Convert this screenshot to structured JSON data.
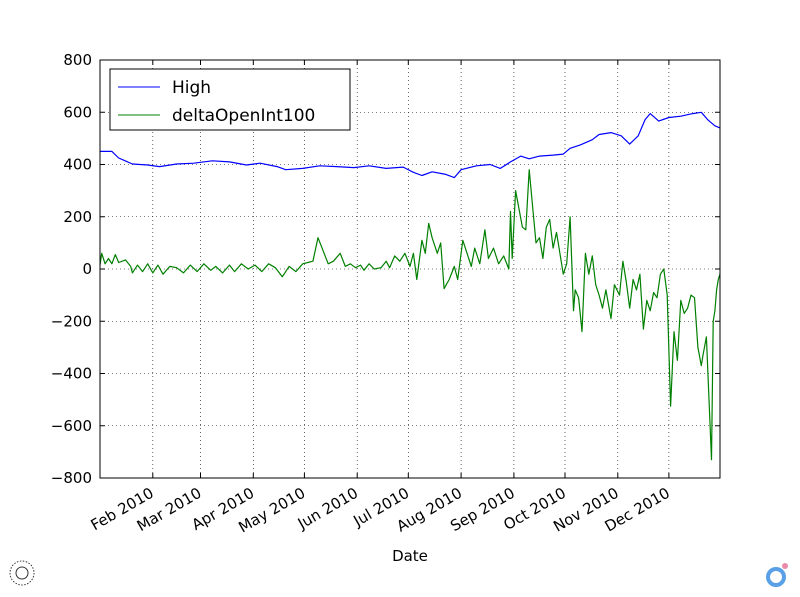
{
  "chart_data": {
    "type": "line",
    "title": "",
    "xlabel": "Date",
    "ylabel": "",
    "ylim": [
      -800,
      800
    ],
    "xlim": [
      "2010-01-01",
      "2010-12-31"
    ],
    "grid": true,
    "legend_position": "top-left",
    "y_ticks": [
      -800,
      -600,
      -400,
      -200,
      0,
      200,
      400,
      600,
      800
    ],
    "y_tick_labels": [
      "−800",
      "−600",
      "−400",
      "−200",
      "0",
      "200",
      "400",
      "600",
      "800"
    ],
    "x_ticks": [
      "2010-02-01",
      "2010-03-01",
      "2010-04-01",
      "2010-05-01",
      "2010-06-01",
      "2010-07-01",
      "2010-08-01",
      "2010-09-01",
      "2010-10-01",
      "2010-11-01",
      "2010-12-01"
    ],
    "x_tick_labels": [
      "Feb 2010",
      "Mar 2010",
      "Apr 2010",
      "May 2010",
      "Jun 2010",
      "Jul 2010",
      "Aug 2010",
      "Sep 2010",
      "Oct 2010",
      "Nov 2010",
      "Dec 2010"
    ],
    "series": [
      {
        "name": "High",
        "color": "#0000ff",
        "points": [
          [
            "2010-01-01",
            450
          ],
          [
            "2010-01-08",
            450
          ],
          [
            "2010-01-12",
            425
          ],
          [
            "2010-01-20",
            402
          ],
          [
            "2010-01-29",
            398
          ],
          [
            "2010-02-05",
            392
          ],
          [
            "2010-02-15",
            402
          ],
          [
            "2010-02-25",
            405
          ],
          [
            "2010-03-08",
            414
          ],
          [
            "2010-03-18",
            410
          ],
          [
            "2010-03-28",
            398
          ],
          [
            "2010-04-05",
            405
          ],
          [
            "2010-04-15",
            392
          ],
          [
            "2010-04-20",
            380
          ],
          [
            "2010-04-30",
            385
          ],
          [
            "2010-05-10",
            395
          ],
          [
            "2010-05-20",
            392
          ],
          [
            "2010-05-30",
            388
          ],
          [
            "2010-06-08",
            395
          ],
          [
            "2010-06-18",
            385
          ],
          [
            "2010-06-28",
            390
          ],
          [
            "2010-07-04",
            370
          ],
          [
            "2010-07-09",
            358
          ],
          [
            "2010-07-15",
            372
          ],
          [
            "2010-07-23",
            362
          ],
          [
            "2010-07-28",
            350
          ],
          [
            "2010-08-01",
            380
          ],
          [
            "2010-08-10",
            395
          ],
          [
            "2010-08-18",
            400
          ],
          [
            "2010-08-24",
            385
          ],
          [
            "2010-08-30",
            410
          ],
          [
            "2010-09-05",
            432
          ],
          [
            "2010-09-10",
            422
          ],
          [
            "2010-09-16",
            432
          ],
          [
            "2010-09-24",
            436
          ],
          [
            "2010-09-30",
            440
          ],
          [
            "2010-10-04",
            462
          ],
          [
            "2010-10-10",
            475
          ],
          [
            "2010-10-17",
            495
          ],
          [
            "2010-10-21",
            515
          ],
          [
            "2010-10-28",
            522
          ],
          [
            "2010-11-03",
            510
          ],
          [
            "2010-11-08",
            478
          ],
          [
            "2010-11-13",
            510
          ],
          [
            "2010-11-17",
            572
          ],
          [
            "2010-11-20",
            595
          ],
          [
            "2010-11-25",
            566
          ],
          [
            "2010-12-01",
            580
          ],
          [
            "2010-12-08",
            585
          ],
          [
            "2010-12-15",
            595
          ],
          [
            "2010-12-20",
            600
          ],
          [
            "2010-12-24",
            570
          ],
          [
            "2010-12-28",
            548
          ],
          [
            "2010-12-31",
            540
          ]
        ]
      },
      {
        "name": "deltaOpenInt100",
        "color": "#008000",
        "points": [
          [
            "2010-01-01",
            15
          ],
          [
            "2010-01-02",
            60
          ],
          [
            "2010-01-04",
            20
          ],
          [
            "2010-01-06",
            40
          ],
          [
            "2010-01-08",
            20
          ],
          [
            "2010-01-10",
            55
          ],
          [
            "2010-01-12",
            25
          ],
          [
            "2010-01-16",
            35
          ],
          [
            "2010-01-19",
            10
          ],
          [
            "2010-01-20",
            -15
          ],
          [
            "2010-01-23",
            15
          ],
          [
            "2010-01-26",
            -10
          ],
          [
            "2010-01-29",
            20
          ],
          [
            "2010-02-01",
            -15
          ],
          [
            "2010-02-04",
            15
          ],
          [
            "2010-02-07",
            -20
          ],
          [
            "2010-02-11",
            10
          ],
          [
            "2010-02-15",
            5
          ],
          [
            "2010-02-19",
            -15
          ],
          [
            "2010-02-23",
            15
          ],
          [
            "2010-02-27",
            -10
          ],
          [
            "2010-03-03",
            20
          ],
          [
            "2010-03-07",
            -5
          ],
          [
            "2010-03-10",
            10
          ],
          [
            "2010-03-14",
            -15
          ],
          [
            "2010-03-18",
            15
          ],
          [
            "2010-03-21",
            -10
          ],
          [
            "2010-03-25",
            20
          ],
          [
            "2010-03-29",
            0
          ],
          [
            "2010-04-02",
            15
          ],
          [
            "2010-04-06",
            -10
          ],
          [
            "2010-04-10",
            20
          ],
          [
            "2010-04-14",
            5
          ],
          [
            "2010-04-18",
            -30
          ],
          [
            "2010-04-22",
            10
          ],
          [
            "2010-04-26",
            -10
          ],
          [
            "2010-04-30",
            20
          ],
          [
            "2010-05-03",
            25
          ],
          [
            "2010-05-06",
            30
          ],
          [
            "2010-05-09",
            120
          ],
          [
            "2010-05-12",
            70
          ],
          [
            "2010-05-15",
            20
          ],
          [
            "2010-05-18",
            30
          ],
          [
            "2010-05-22",
            60
          ],
          [
            "2010-05-25",
            10
          ],
          [
            "2010-05-28",
            20
          ],
          [
            "2010-05-31",
            5
          ],
          [
            "2010-06-03",
            15
          ],
          [
            "2010-06-05",
            -5
          ],
          [
            "2010-06-08",
            20
          ],
          [
            "2010-06-11",
            0
          ],
          [
            "2010-06-15",
            5
          ],
          [
            "2010-06-18",
            30
          ],
          [
            "2010-06-20",
            5
          ],
          [
            "2010-06-23",
            50
          ],
          [
            "2010-06-26",
            30
          ],
          [
            "2010-06-29",
            60
          ],
          [
            "2010-07-02",
            10
          ],
          [
            "2010-07-04",
            60
          ],
          [
            "2010-07-06",
            -40
          ],
          [
            "2010-07-09",
            110
          ],
          [
            "2010-07-11",
            60
          ],
          [
            "2010-07-13",
            175
          ],
          [
            "2010-07-15",
            120
          ],
          [
            "2010-07-18",
            60
          ],
          [
            "2010-07-20",
            100
          ],
          [
            "2010-07-22",
            -75
          ],
          [
            "2010-07-25",
            -40
          ],
          [
            "2010-07-28",
            10
          ],
          [
            "2010-07-30",
            -40
          ],
          [
            "2010-08-02",
            110
          ],
          [
            "2010-08-05",
            50
          ],
          [
            "2010-08-07",
            10
          ],
          [
            "2010-08-09",
            80
          ],
          [
            "2010-08-12",
            20
          ],
          [
            "2010-08-15",
            150
          ],
          [
            "2010-08-17",
            40
          ],
          [
            "2010-08-20",
            80
          ],
          [
            "2010-08-23",
            20
          ],
          [
            "2010-08-26",
            50
          ],
          [
            "2010-08-29",
            0
          ],
          [
            "2010-08-30",
            220
          ],
          [
            "2010-08-31",
            40
          ],
          [
            "2010-09-02",
            300
          ],
          [
            "2010-09-04",
            230
          ],
          [
            "2010-09-06",
            160
          ],
          [
            "2010-09-08",
            150
          ],
          [
            "2010-09-10",
            380
          ],
          [
            "2010-09-12",
            240
          ],
          [
            "2010-09-14",
            100
          ],
          [
            "2010-09-16",
            120
          ],
          [
            "2010-09-18",
            40
          ],
          [
            "2010-09-20",
            160
          ],
          [
            "2010-09-22",
            190
          ],
          [
            "2010-09-24",
            80
          ],
          [
            "2010-09-26",
            140
          ],
          [
            "2010-09-28",
            60
          ],
          [
            "2010-09-30",
            -20
          ],
          [
            "2010-10-02",
            20
          ],
          [
            "2010-10-04",
            200
          ],
          [
            "2010-10-06",
            -160
          ],
          [
            "2010-10-07",
            -80
          ],
          [
            "2010-10-09",
            -110
          ],
          [
            "2010-10-11",
            -240
          ],
          [
            "2010-10-13",
            60
          ],
          [
            "2010-10-15",
            -20
          ],
          [
            "2010-10-17",
            50
          ],
          [
            "2010-10-19",
            -60
          ],
          [
            "2010-10-21",
            -100
          ],
          [
            "2010-10-23",
            -150
          ],
          [
            "2010-10-25",
            -80
          ],
          [
            "2010-10-28",
            -190
          ],
          [
            "2010-10-30",
            -60
          ],
          [
            "2010-11-02",
            -100
          ],
          [
            "2010-11-04",
            30
          ],
          [
            "2010-11-06",
            -50
          ],
          [
            "2010-11-08",
            -150
          ],
          [
            "2010-11-10",
            -40
          ],
          [
            "2010-11-12",
            -80
          ],
          [
            "2010-11-14",
            -20
          ],
          [
            "2010-11-16",
            -230
          ],
          [
            "2010-11-18",
            -120
          ],
          [
            "2010-11-20",
            -160
          ],
          [
            "2010-11-22",
            -90
          ],
          [
            "2010-11-24",
            -110
          ],
          [
            "2010-11-26",
            -20
          ],
          [
            "2010-11-28",
            0
          ],
          [
            "2010-11-30",
            -100
          ],
          [
            "2010-12-02",
            -525
          ],
          [
            "2010-12-04",
            -240
          ],
          [
            "2010-12-06",
            -350
          ],
          [
            "2010-12-08",
            -120
          ],
          [
            "2010-12-10",
            -170
          ],
          [
            "2010-12-12",
            -150
          ],
          [
            "2010-12-14",
            -100
          ],
          [
            "2010-12-16",
            -110
          ],
          [
            "2010-12-18",
            -300
          ],
          [
            "2010-12-20",
            -370
          ],
          [
            "2010-12-21",
            -330
          ],
          [
            "2010-12-23",
            -260
          ],
          [
            "2010-12-26",
            -730
          ],
          [
            "2010-12-27",
            -200
          ],
          [
            "2010-12-28",
            -160
          ],
          [
            "2010-12-29",
            -80
          ],
          [
            "2010-12-30",
            -40
          ],
          [
            "2010-12-31",
            -20
          ]
        ]
      }
    ]
  },
  "watermark": {
    "left_icon": "circular-stamp-icon",
    "right_icon": "ring-logo-icon"
  }
}
